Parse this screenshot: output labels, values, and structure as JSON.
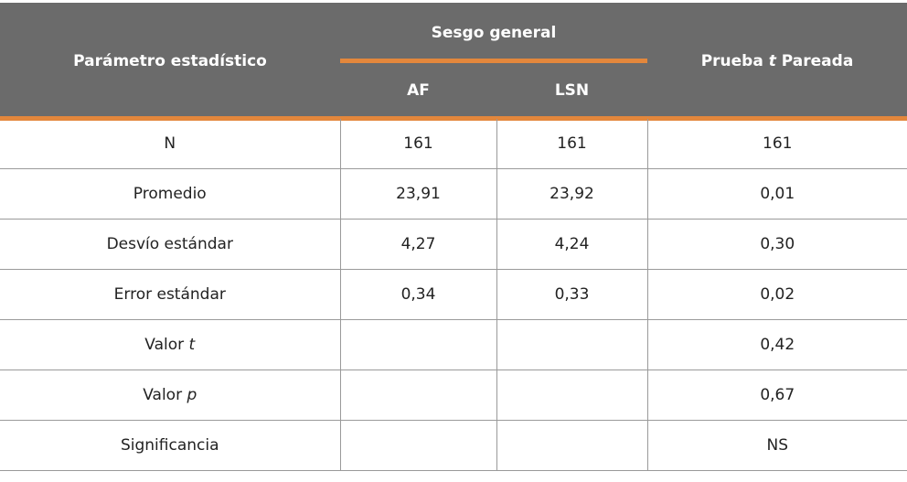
{
  "header": {
    "param_label": "Parámetro estadístico",
    "group_label": "Sesgo general",
    "col_af": "AF",
    "col_lsn": "LSN",
    "paired_pre": "Prueba ",
    "paired_t": "t",
    "paired_post": " Pareada"
  },
  "rows": [
    {
      "label": "N",
      "label_italic": "",
      "af": "161",
      "lsn": "161",
      "paired": "161"
    },
    {
      "label": "Promedio",
      "label_italic": "",
      "af": "23,91",
      "lsn": "23,92",
      "paired": "0,01"
    },
    {
      "label": "Desvío estándar",
      "label_italic": "",
      "af": "4,27",
      "lsn": "4,24",
      "paired": "0,30"
    },
    {
      "label": "Error estándar",
      "label_italic": "",
      "af": "0,34",
      "lsn": "0,33",
      "paired": "0,02"
    },
    {
      "label": "Valor ",
      "label_italic": "t",
      "af": "",
      "lsn": "",
      "paired": "0,42"
    },
    {
      "label": "Valor ",
      "label_italic": "p",
      "af": "",
      "lsn": "",
      "paired": "0,67"
    },
    {
      "label": "Significancia",
      "label_italic": "",
      "af": "",
      "lsn": "",
      "paired": "NS"
    }
  ],
  "colors": {
    "header_bg": "#6b6b6b",
    "accent": "#e3873c",
    "border": "#9a9a9a"
  }
}
